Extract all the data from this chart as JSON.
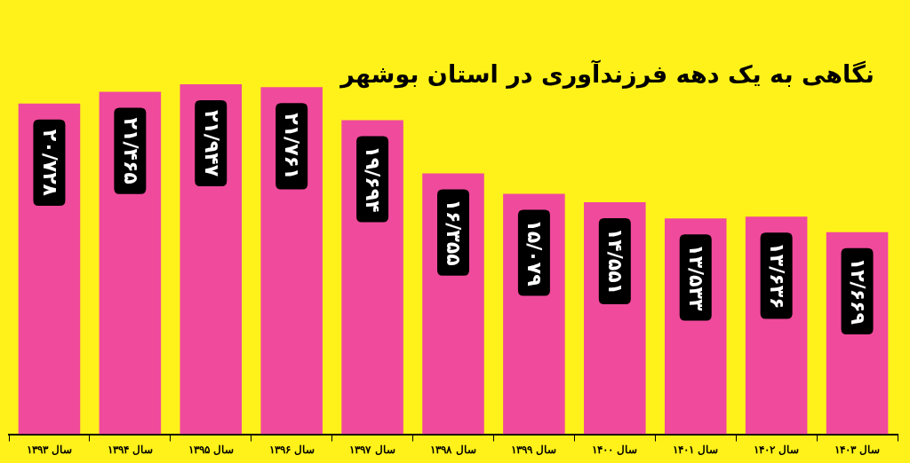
{
  "chart_data": {
    "type": "bar",
    "title": "نگاهی به یک دهه فرزندآوری در استان بوشهر",
    "categories": [
      "سال ۱۳۹۳",
      "سال ۱۳۹۴",
      "سال ۱۳۹۵",
      "سال ۱۳۹۶",
      "سال ۱۳۹۷",
      "سال ۱۳۹۸",
      "سال ۱۳۹۹",
      "سال ۱۴۰۰",
      "سال ۱۴۰۱",
      "سال ۱۴۰۲",
      "سال ۱۴۰۳"
    ],
    "values": [
      20.728,
      21.465,
      21.947,
      21.761,
      19.694,
      16.355,
      15.079,
      14.551,
      13.533,
      13.636,
      12.669
    ],
    "value_labels": [
      "۲۰/۷۲۸",
      "۲۱/۴۶۵",
      "۲۱/۹۴۷",
      "۲۱/۷۶۱",
      "۱۹/۶۹۴",
      "۱۶/۳۵۵",
      "۱۵/۰۷۹",
      "۱۴/۵۵۱",
      "۱۳/۵۳۳",
      "۱۳/۶۳۶",
      "۱۲/۶۶۹"
    ],
    "color": "#f04a9c",
    "tick_labels": "x",
    "grid": false,
    "legend": false
  }
}
